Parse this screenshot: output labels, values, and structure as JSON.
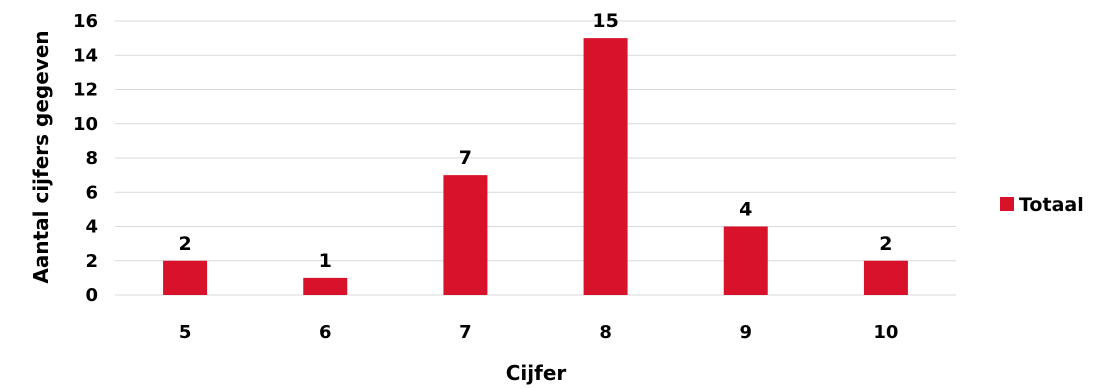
{
  "chart_data": {
    "type": "bar",
    "categories": [
      "5",
      "6",
      "7",
      "8",
      "9",
      "10"
    ],
    "series": [
      {
        "name": "Totaal",
        "values": [
          2,
          1,
          7,
          15,
          4,
          2
        ]
      }
    ],
    "title": "",
    "xlabel": "Cijfer",
    "ylabel": "Aantal cijfers gegeven",
    "ylim": [
      0,
      16
    ],
    "yticks": [
      "0",
      "2",
      "4",
      "6",
      "8",
      "10",
      "12",
      "14",
      "16"
    ],
    "grid": true,
    "legend_position": "right",
    "data_labels": true,
    "bar_color": "#d9122b",
    "grid_color": "#d9d9d9"
  }
}
